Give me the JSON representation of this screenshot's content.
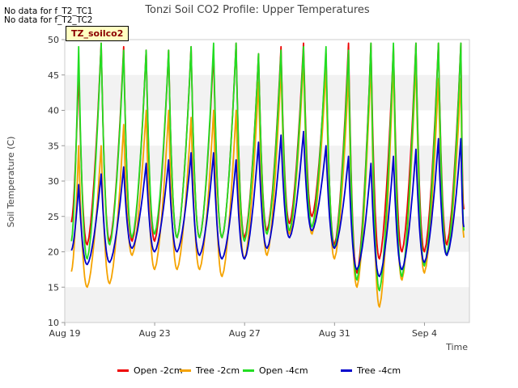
{
  "title": "Tonzi Soil CO2 Profile: Upper Temperatures",
  "notes": [
    "No data for f_T2_TC1",
    "No data for f_T2_TC2"
  ],
  "tag_label": "TZ_soilco2",
  "chart_data": {
    "type": "line",
    "title": "Tonzi Soil CO2 Profile: Upper Temperatures",
    "xlabel": "Time",
    "ylabel": "Soil Temperature (C)",
    "ylim": [
      10,
      50
    ],
    "yticks": [
      10,
      15,
      20,
      25,
      30,
      35,
      40,
      45,
      50
    ],
    "xlim_days": [
      0,
      18
    ],
    "xticks": [
      {
        "day": 0,
        "label": "Aug 19"
      },
      {
        "day": 4,
        "label": "Aug 23"
      },
      {
        "day": 8,
        "label": "Aug 27"
      },
      {
        "day": 12,
        "label": "Aug 31"
      },
      {
        "day": 16,
        "label": "Sep 4"
      }
    ],
    "grid": "horizontal bands",
    "legend_position": "bottom",
    "days": [
      0.3,
      1,
      2,
      3,
      4,
      5,
      6,
      7,
      8,
      9,
      10,
      11,
      12,
      13,
      14,
      15,
      16,
      17
    ],
    "series": [
      {
        "name": "Open -2cm",
        "color": "#ee0000",
        "min": [
          24.2,
          21,
          21.5,
          21.5,
          21.5,
          22,
          22,
          22,
          22,
          23,
          24,
          25,
          21,
          17,
          19,
          20,
          20,
          21
        ],
        "max": [
          null,
          46,
          49.5,
          49,
          48.5,
          48.5,
          49,
          48.5,
          49.5,
          48,
          49,
          49.5,
          48,
          49.5,
          49.5,
          49,
          49.5,
          49.5
        ],
        "end": 26
      },
      {
        "name": "Tree -2cm",
        "color": "#f5a300",
        "min": [
          17.2,
          15,
          15.5,
          19.5,
          17.5,
          17.5,
          17.5,
          16.5,
          19,
          19.5,
          22.5,
          22.5,
          19,
          15,
          12.2,
          16,
          17,
          19.5
        ],
        "max": [
          null,
          35,
          35,
          38,
          40,
          40,
          39,
          40,
          40,
          44,
          46,
          47,
          46,
          45,
          47,
          47,
          47,
          44.5
        ],
        "end": 22
      },
      {
        "name": "Open -4cm",
        "color": "#22dd22",
        "min": [
          21.5,
          19,
          21,
          22,
          22.5,
          22,
          22,
          22,
          21.5,
          22.5,
          23,
          23.5,
          20.5,
          16,
          14.5,
          16.5,
          18,
          19.5
        ],
        "max": [
          null,
          49,
          49.5,
          48.5,
          48.5,
          48.5,
          49,
          49.5,
          49.5,
          48,
          48.5,
          49,
          49,
          48.5,
          49.5,
          49.5,
          49.5,
          49.5
        ],
        "end": 23
      },
      {
        "name": "Tree -4cm",
        "color": "#0000cc",
        "min": [
          20.2,
          18.2,
          18.5,
          20.5,
          20,
          20,
          19.5,
          19,
          19,
          20.5,
          22,
          23,
          20.5,
          17.5,
          16.5,
          17.5,
          18.5,
          19.5
        ],
        "max": [
          null,
          29.5,
          31,
          32,
          32.5,
          33,
          34,
          34,
          33,
          35.5,
          36.5,
          37,
          35,
          33.5,
          32.5,
          33.5,
          34.5,
          36
        ],
        "end": 23.5
      }
    ]
  }
}
